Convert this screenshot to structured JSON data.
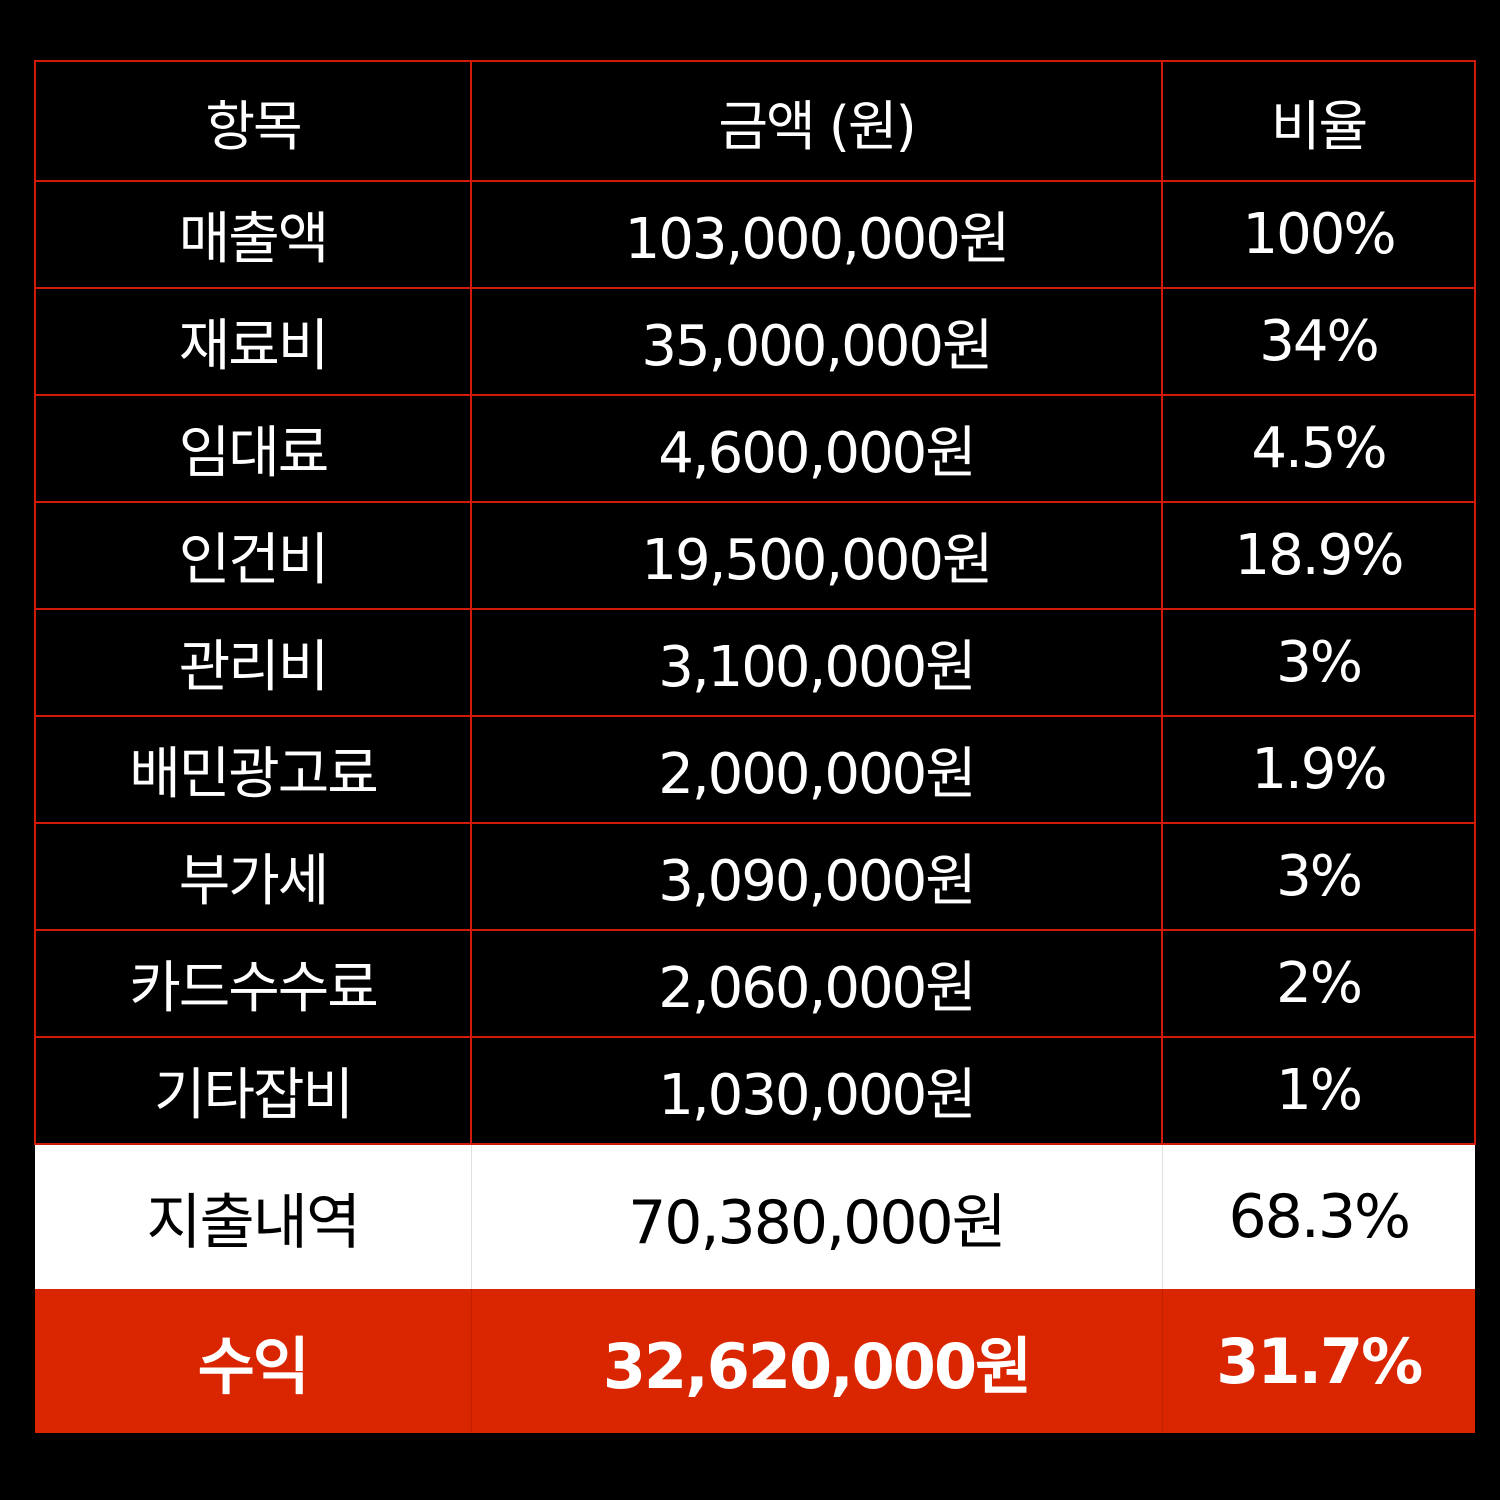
{
  "colors": {
    "background": "#000000",
    "border": "#d11a0a",
    "total_bg": "#ffffff",
    "profit_bg": "#d92600"
  },
  "header": {
    "item": "항목",
    "amount": "금액 (원)",
    "ratio": "비율"
  },
  "rows": [
    {
      "item": "매출액",
      "amount": "103,000,000원",
      "ratio": "100%"
    },
    {
      "item": "재료비",
      "amount": "35,000,000원",
      "ratio": "34%"
    },
    {
      "item": "임대료",
      "amount": "4,600,000원",
      "ratio": "4.5%"
    },
    {
      "item": "인건비",
      "amount": "19,500,000원",
      "ratio": "18.9%"
    },
    {
      "item": "관리비",
      "amount": "3,100,000원",
      "ratio": "3%"
    },
    {
      "item": "배민광고료",
      "amount": "2,000,000원",
      "ratio": "1.9%"
    },
    {
      "item": "부가세",
      "amount": "3,090,000원",
      "ratio": "3%"
    },
    {
      "item": "카드수수료",
      "amount": "2,060,000원",
      "ratio": "2%"
    },
    {
      "item": "기타잡비",
      "amount": "1,030,000원",
      "ratio": "1%"
    }
  ],
  "total": {
    "item": "지출내역",
    "amount": "70,380,000원",
    "ratio": "68.3%"
  },
  "profit": {
    "item": "수익",
    "amount": "32,620,000원",
    "ratio": "31.7%"
  }
}
